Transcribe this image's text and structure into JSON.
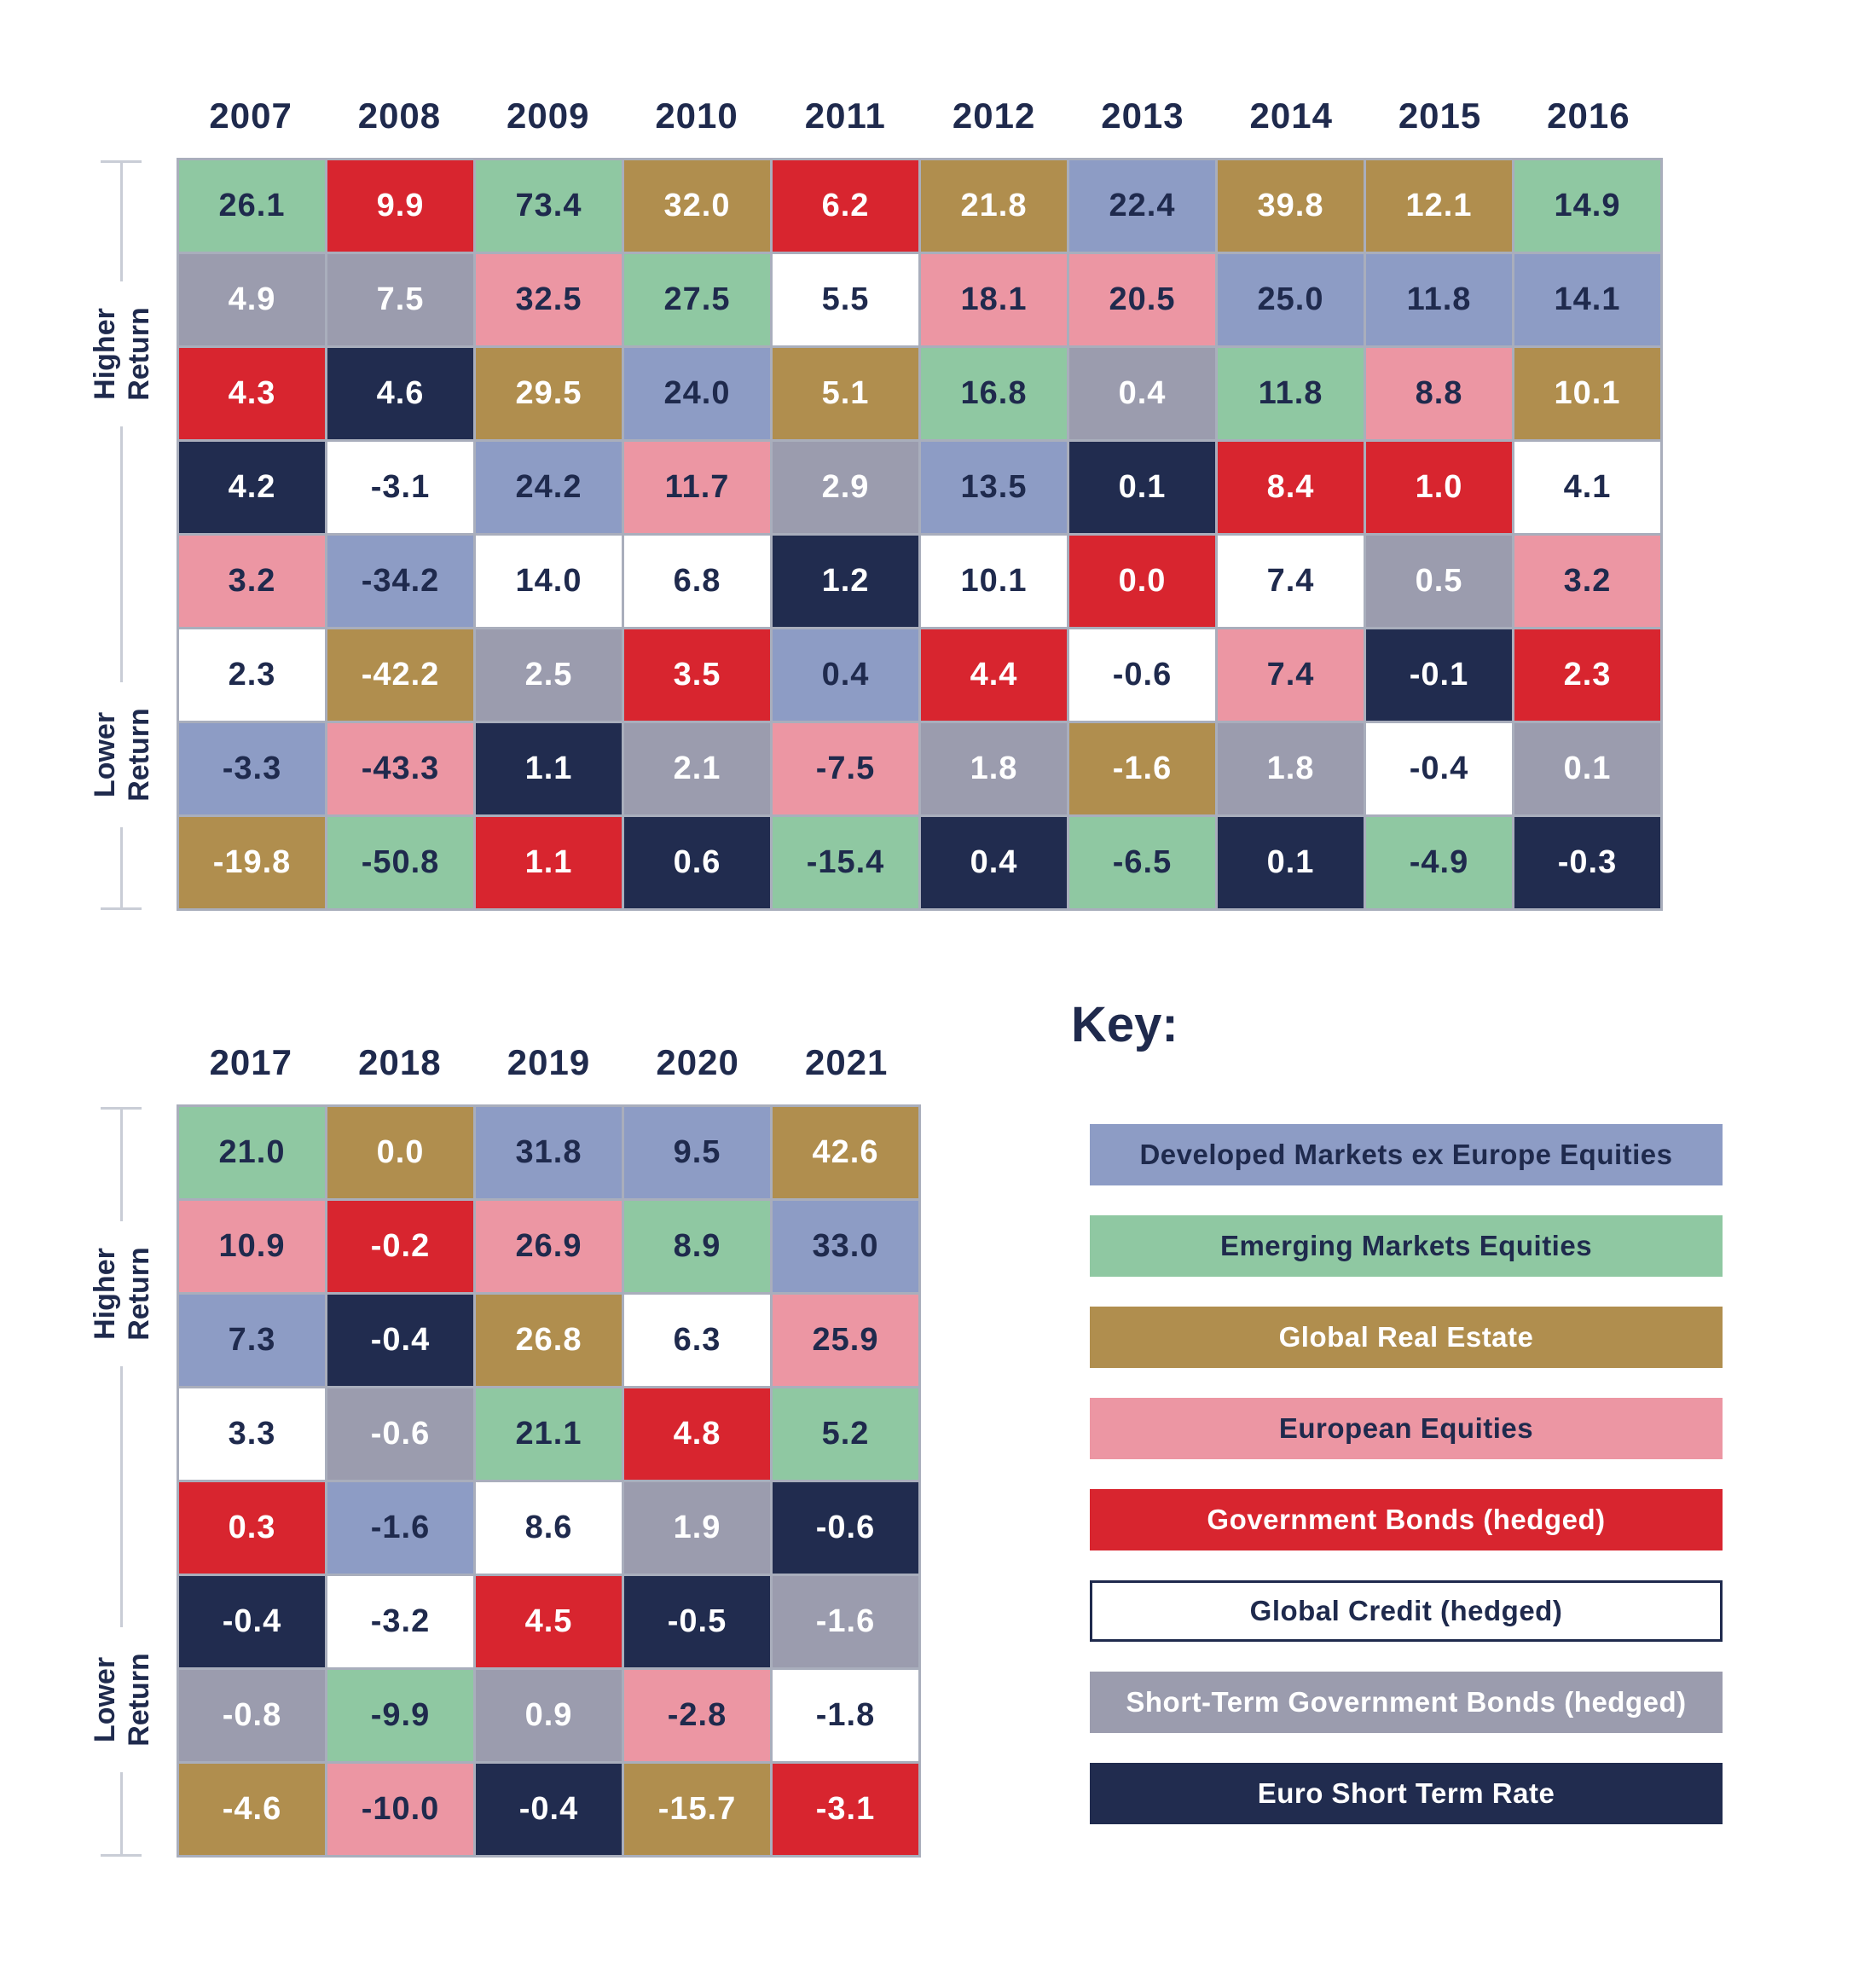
{
  "axis": {
    "higher": "Higher Return",
    "lower": "Lower Return"
  },
  "key": {
    "title": "Key:"
  },
  "colors": {
    "grid_line": "#a9aebc",
    "axis_line": "#c9cdd6",
    "heading_text": "#1f2a4d"
  },
  "asset_classes": {
    "developed": {
      "label": "Developed Markets ex Europe Equities",
      "color": "#8d9cc5",
      "text": "#1f2a4d"
    },
    "emerging": {
      "label": "Emerging Markets Equities",
      "color": "#8fc8a2",
      "text": "#1f2a4d"
    },
    "realestate": {
      "label": "Global Real Estate",
      "color": "#b08e4e",
      "text": "#ffffff"
    },
    "european": {
      "label": "European Equities",
      "color": "#ec96a3",
      "text": "#1f2a4d"
    },
    "govbonds": {
      "label": "Government Bonds (hedged)",
      "color": "#d8252f",
      "text": "#ffffff"
    },
    "globalcredit": {
      "label": "Global Credit (hedged)",
      "color": "#ffffff",
      "text": "#1f2a4d",
      "border": "#1f2a4d"
    },
    "shortterm": {
      "label": "Short-Term Government Bonds (hedged)",
      "color": "#9b9cae",
      "text": "#ffffff"
    },
    "euroshort": {
      "label": "Euro Short Term Rate",
      "color": "#212c4f",
      "text": "#ffffff"
    }
  },
  "key_order": [
    "developed",
    "emerging",
    "realestate",
    "european",
    "govbonds",
    "globalcredit",
    "shortterm",
    "euroshort"
  ],
  "chart_data": {
    "type": "heatmap",
    "description": "Periodic table of annual asset class returns (%), ranked from higher to lower return per year",
    "legend_position": "bottom-right",
    "grids": [
      {
        "years": [
          "2007",
          "2008",
          "2009",
          "2010",
          "2011",
          "2012",
          "2013",
          "2014",
          "2015",
          "2016"
        ],
        "rows": [
          [
            {
              "v": "26.1",
              "a": "emerging"
            },
            {
              "v": "9.9",
              "a": "govbonds"
            },
            {
              "v": "73.4",
              "a": "emerging"
            },
            {
              "v": "32.0",
              "a": "realestate"
            },
            {
              "v": "6.2",
              "a": "govbonds"
            },
            {
              "v": "21.8",
              "a": "realestate"
            },
            {
              "v": "22.4",
              "a": "developed"
            },
            {
              "v": "39.8",
              "a": "realestate"
            },
            {
              "v": "12.1",
              "a": "realestate"
            },
            {
              "v": "14.9",
              "a": "emerging"
            }
          ],
          [
            {
              "v": "4.9",
              "a": "shortterm"
            },
            {
              "v": "7.5",
              "a": "shortterm"
            },
            {
              "v": "32.5",
              "a": "european"
            },
            {
              "v": "27.5",
              "a": "emerging"
            },
            {
              "v": "5.5",
              "a": "globalcredit"
            },
            {
              "v": "18.1",
              "a": "european"
            },
            {
              "v": "20.5",
              "a": "european"
            },
            {
              "v": "25.0",
              "a": "developed"
            },
            {
              "v": "11.8",
              "a": "developed"
            },
            {
              "v": "14.1",
              "a": "developed"
            }
          ],
          [
            {
              "v": "4.3",
              "a": "govbonds"
            },
            {
              "v": "4.6",
              "a": "euroshort"
            },
            {
              "v": "29.5",
              "a": "realestate"
            },
            {
              "v": "24.0",
              "a": "developed"
            },
            {
              "v": "5.1",
              "a": "realestate"
            },
            {
              "v": "16.8",
              "a": "emerging"
            },
            {
              "v": "0.4",
              "a": "shortterm"
            },
            {
              "v": "11.8",
              "a": "emerging"
            },
            {
              "v": "8.8",
              "a": "european"
            },
            {
              "v": "10.1",
              "a": "realestate"
            }
          ],
          [
            {
              "v": "4.2",
              "a": "euroshort"
            },
            {
              "v": "-3.1",
              "a": "globalcredit"
            },
            {
              "v": "24.2",
              "a": "developed"
            },
            {
              "v": "11.7",
              "a": "european"
            },
            {
              "v": "2.9",
              "a": "shortterm"
            },
            {
              "v": "13.5",
              "a": "developed"
            },
            {
              "v": "0.1",
              "a": "euroshort"
            },
            {
              "v": "8.4",
              "a": "govbonds"
            },
            {
              "v": "1.0",
              "a": "govbonds"
            },
            {
              "v": "4.1",
              "a": "globalcredit"
            }
          ],
          [
            {
              "v": "3.2",
              "a": "european"
            },
            {
              "v": "-34.2",
              "a": "developed"
            },
            {
              "v": "14.0",
              "a": "globalcredit"
            },
            {
              "v": "6.8",
              "a": "globalcredit"
            },
            {
              "v": "1.2",
              "a": "euroshort"
            },
            {
              "v": "10.1",
              "a": "globalcredit"
            },
            {
              "v": "0.0",
              "a": "govbonds"
            },
            {
              "v": "7.4",
              "a": "globalcredit"
            },
            {
              "v": "0.5",
              "a": "shortterm"
            },
            {
              "v": "3.2",
              "a": "european"
            }
          ],
          [
            {
              "v": "2.3",
              "a": "globalcredit"
            },
            {
              "v": "-42.2",
              "a": "realestate"
            },
            {
              "v": "2.5",
              "a": "shortterm"
            },
            {
              "v": "3.5",
              "a": "govbonds"
            },
            {
              "v": "0.4",
              "a": "developed"
            },
            {
              "v": "4.4",
              "a": "govbonds"
            },
            {
              "v": "-0.6",
              "a": "globalcredit"
            },
            {
              "v": "7.4",
              "a": "european"
            },
            {
              "v": "-0.1",
              "a": "euroshort"
            },
            {
              "v": "2.3",
              "a": "govbonds"
            }
          ],
          [
            {
              "v": "-3.3",
              "a": "developed"
            },
            {
              "v": "-43.3",
              "a": "european"
            },
            {
              "v": "1.1",
              "a": "euroshort"
            },
            {
              "v": "2.1",
              "a": "shortterm"
            },
            {
              "v": "-7.5",
              "a": "european"
            },
            {
              "v": "1.8",
              "a": "shortterm"
            },
            {
              "v": "-1.6",
              "a": "realestate"
            },
            {
              "v": "1.8",
              "a": "shortterm"
            },
            {
              "v": "-0.4",
              "a": "globalcredit"
            },
            {
              "v": "0.1",
              "a": "shortterm"
            }
          ],
          [
            {
              "v": "-19.8",
              "a": "realestate"
            },
            {
              "v": "-50.8",
              "a": "emerging"
            },
            {
              "v": "1.1",
              "a": "govbonds"
            },
            {
              "v": "0.6",
              "a": "euroshort"
            },
            {
              "v": "-15.4",
              "a": "emerging"
            },
            {
              "v": "0.4",
              "a": "euroshort"
            },
            {
              "v": "-6.5",
              "a": "emerging"
            },
            {
              "v": "0.1",
              "a": "euroshort"
            },
            {
              "v": "-4.9",
              "a": "emerging"
            },
            {
              "v": "-0.3",
              "a": "euroshort"
            }
          ]
        ]
      },
      {
        "years": [
          "2017",
          "2018",
          "2019",
          "2020",
          "2021"
        ],
        "rows": [
          [
            {
              "v": "21.0",
              "a": "emerging"
            },
            {
              "v": "0.0",
              "a": "realestate"
            },
            {
              "v": "31.8",
              "a": "developed"
            },
            {
              "v": "9.5",
              "a": "developed"
            },
            {
              "v": "42.6",
              "a": "realestate"
            }
          ],
          [
            {
              "v": "10.9",
              "a": "european"
            },
            {
              "v": "-0.2",
              "a": "govbonds"
            },
            {
              "v": "26.9",
              "a": "european"
            },
            {
              "v": "8.9",
              "a": "emerging"
            },
            {
              "v": "33.0",
              "a": "developed"
            }
          ],
          [
            {
              "v": "7.3",
              "a": "developed"
            },
            {
              "v": "-0.4",
              "a": "euroshort"
            },
            {
              "v": "26.8",
              "a": "realestate"
            },
            {
              "v": "6.3",
              "a": "globalcredit"
            },
            {
              "v": "25.9",
              "a": "european"
            }
          ],
          [
            {
              "v": "3.3",
              "a": "globalcredit"
            },
            {
              "v": "-0.6",
              "a": "shortterm"
            },
            {
              "v": "21.1",
              "a": "emerging"
            },
            {
              "v": "4.8",
              "a": "govbonds"
            },
            {
              "v": "5.2",
              "a": "emerging"
            }
          ],
          [
            {
              "v": "0.3",
              "a": "govbonds"
            },
            {
              "v": "-1.6",
              "a": "developed"
            },
            {
              "v": "8.6",
              "a": "globalcredit"
            },
            {
              "v": "1.9",
              "a": "shortterm"
            },
            {
              "v": "-0.6",
              "a": "euroshort"
            }
          ],
          [
            {
              "v": "-0.4",
              "a": "euroshort"
            },
            {
              "v": "-3.2",
              "a": "globalcredit"
            },
            {
              "v": "4.5",
              "a": "govbonds"
            },
            {
              "v": "-0.5",
              "a": "euroshort"
            },
            {
              "v": "-1.6",
              "a": "shortterm"
            }
          ],
          [
            {
              "v": "-0.8",
              "a": "shortterm"
            },
            {
              "v": "-9.9",
              "a": "emerging"
            },
            {
              "v": "0.9",
              "a": "shortterm"
            },
            {
              "v": "-2.8",
              "a": "european"
            },
            {
              "v": "-1.8",
              "a": "globalcredit"
            }
          ],
          [
            {
              "v": "-4.6",
              "a": "realestate"
            },
            {
              "v": "-10.0",
              "a": "european"
            },
            {
              "v": "-0.4",
              "a": "euroshort"
            },
            {
              "v": "-15.7",
              "a": "realestate"
            },
            {
              "v": "-3.1",
              "a": "govbonds"
            }
          ]
        ]
      }
    ]
  }
}
